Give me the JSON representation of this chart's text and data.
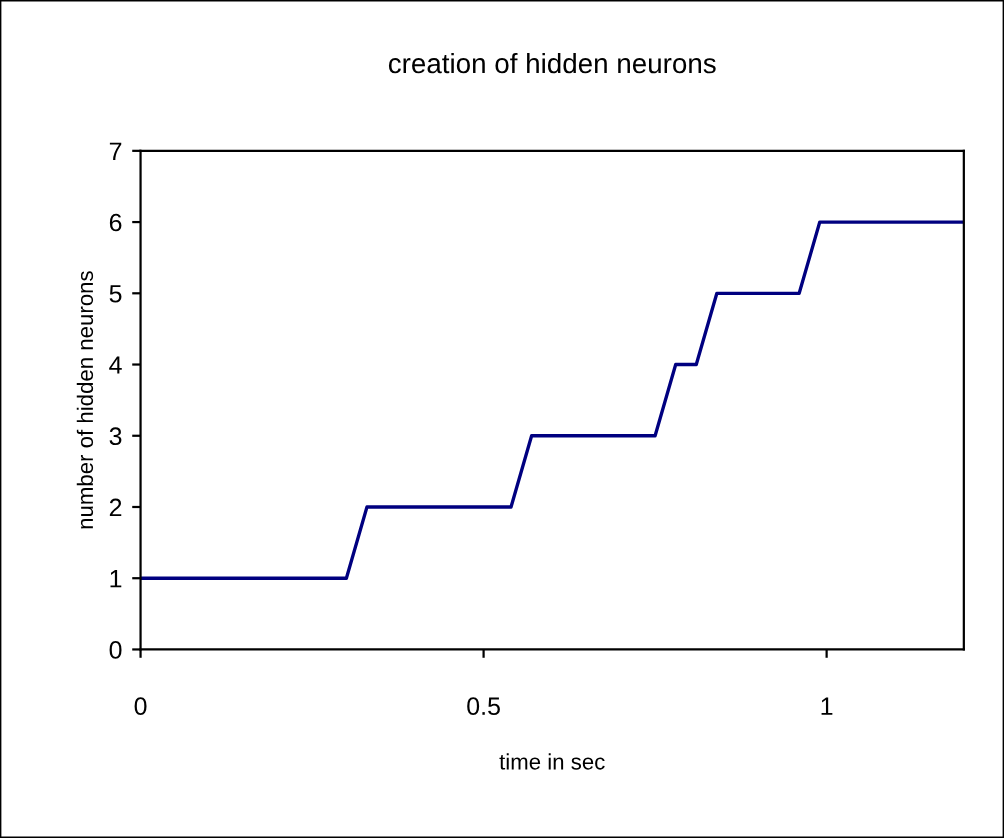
{
  "chart_data": {
    "type": "line",
    "title": "creation of hidden neurons",
    "xlabel": "time in sec",
    "ylabel": "number of hidden neurons",
    "x": [
      0,
      0.3,
      0.33,
      0.54,
      0.57,
      0.75,
      0.78,
      0.81,
      0.84,
      0.96,
      0.99,
      1.2
    ],
    "series": [
      {
        "color": "#000080",
        "values": [
          1,
          1,
          2,
          2,
          3,
          3,
          4,
          4,
          5,
          5,
          6,
          6
        ]
      }
    ],
    "xlim": [
      0,
      1.2
    ],
    "xticks": [
      0,
      0.5,
      1
    ],
    "ylim": [
      0,
      7
    ],
    "yticks": [
      0,
      1,
      2,
      3,
      4,
      5,
      6,
      7
    ],
    "grid": false,
    "legend": false,
    "marker": "none",
    "line_style": "solid"
  }
}
